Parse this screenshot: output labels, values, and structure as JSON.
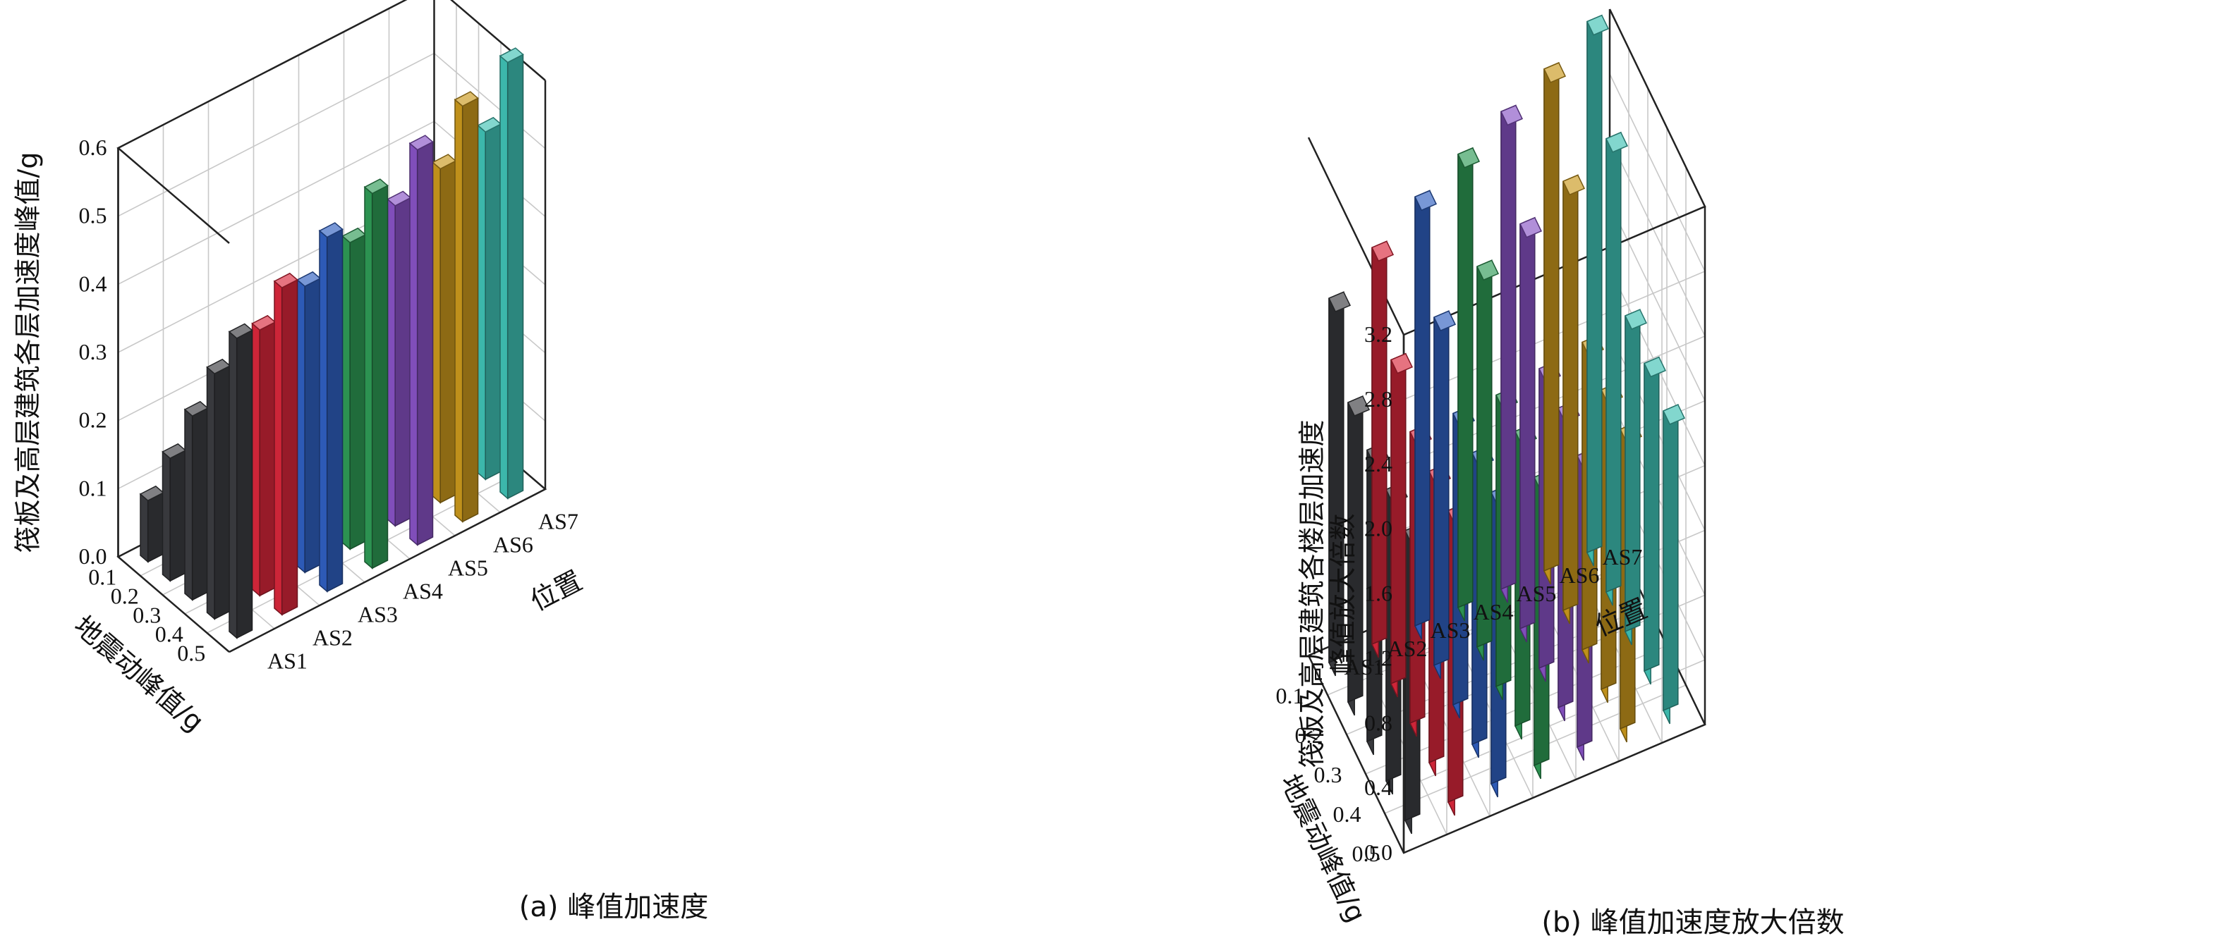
{
  "colors": {
    "AS1": "#3b3c40",
    "AS2": "#d8273b",
    "AS3": "#2f5fc0",
    "AS4": "#2e9a55",
    "AS5": "#8752c4",
    "AS6": "#c9981c",
    "AS7": "#3fc1b4"
  },
  "chart_data": [
    {
      "type": "bar3d",
      "caption": "(a) 峰值加速度",
      "zlabel": "筏板及高层建筑各层加速度峰值/g",
      "xlabel": "地震动峰值/g",
      "ylabel": "位置",
      "x": [
        "0.5",
        "0.4",
        "0.3",
        "0.2",
        "0.1"
      ],
      "positions": [
        "AS1",
        "AS2",
        "AS3",
        "AS4",
        "AS5",
        "AS6",
        "AS7"
      ],
      "zticks": [
        "0.0",
        "0.1",
        "0.2",
        "0.3",
        "0.4",
        "0.5",
        "0.6"
      ],
      "zlim": [
        0,
        0.6
      ],
      "series": [
        {
          "name": "AS1",
          "values": [
            0.44,
            0.36,
            0.27,
            0.18,
            0.09
          ]
        },
        {
          "name": "AS2",
          "values": [
            0.48,
            0.39,
            0.3,
            0.2,
            0.1
          ]
        },
        {
          "name": "AS3",
          "values": [
            0.52,
            0.42,
            0.33,
            0.22,
            0.11
          ]
        },
        {
          "name": "AS4",
          "values": [
            0.55,
            0.45,
            0.35,
            0.23,
            0.12
          ]
        },
        {
          "name": "AS5",
          "values": [
            0.58,
            0.47,
            0.37,
            0.25,
            0.13
          ]
        },
        {
          "name": "AS6",
          "values": [
            0.61,
            0.49,
            0.38,
            0.26,
            0.13
          ]
        },
        {
          "name": "AS7",
          "values": [
            0.64,
            0.51,
            0.4,
            0.27,
            0.14
          ]
        }
      ]
    },
    {
      "type": "bar3d",
      "caption": "(b) 峰值加速度放大倍数",
      "zlabel": "筏板及高层建筑各楼层加速度\n峰值放大倍数",
      "xlabel": "地震动峰值/g",
      "ylabel": "位置",
      "x": [
        "0.1",
        "0.2",
        "0.3",
        "0.4",
        "0.5"
      ],
      "positions": [
        "AS1",
        "AS2",
        "AS3",
        "AS4",
        "AS5",
        "AS6",
        "AS7"
      ],
      "zticks": [
        "0.0",
        "0.4",
        "0.8",
        "1.2",
        "1.6",
        "2.0",
        "2.4",
        "2.8",
        "3.2"
      ],
      "zlim": [
        0,
        3.2
      ],
      "series": [
        {
          "name": "AS1",
          "values": [
            2.25,
            1.85,
            1.8,
            1.8,
            1.79
          ]
        },
        {
          "name": "AS2",
          "values": [
            2.45,
            2.0,
            1.8,
            1.8,
            1.8
          ]
        },
        {
          "name": "AS3",
          "values": [
            2.65,
            2.15,
            1.8,
            1.8,
            1.8
          ]
        },
        {
          "name": "AS4",
          "values": [
            2.8,
            2.35,
            1.8,
            1.82,
            1.78
          ]
        },
        {
          "name": "AS5",
          "values": [
            2.95,
            2.5,
            1.85,
            1.85,
            1.8
          ]
        },
        {
          "name": "AS6",
          "values": [
            3.1,
            2.65,
            1.9,
            1.85,
            1.85
          ]
        },
        {
          "name": "AS7",
          "values": [
            3.28,
            2.8,
            1.95,
            1.9,
            1.85
          ]
        }
      ]
    }
  ]
}
